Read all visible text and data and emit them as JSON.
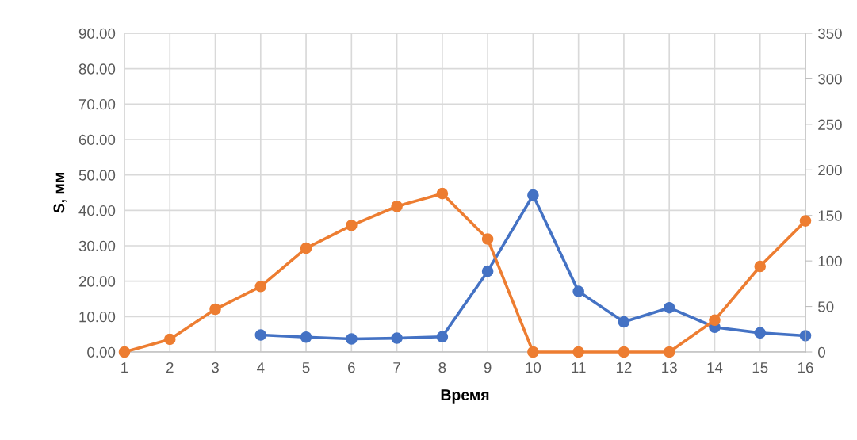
{
  "chart_data": {
    "type": "line",
    "xlabel": "Время",
    "ylabel": "S, мм",
    "categories": [
      "1",
      "2",
      "3",
      "4",
      "5",
      "6",
      "7",
      "8",
      "9",
      "10",
      "11",
      "12",
      "13",
      "14",
      "15",
      "16"
    ],
    "series": [
      {
        "color": "#4472c4",
        "values": [
          null,
          null,
          null,
          4.8,
          4.2,
          3.7,
          3.9,
          4.3,
          22.8,
          44.3,
          17.1,
          8.5,
          12.5,
          7.0,
          5.4,
          4.6
        ]
      },
      {
        "color": "#ed7d31",
        "axis": "y2",
        "values": [
          0,
          14,
          47,
          72,
          114,
          139,
          160,
          174,
          124,
          0,
          0,
          0,
          0,
          35,
          94,
          144
        ]
      }
    ],
    "ylim": [
      0,
      90
    ],
    "yticks": [
      {
        "value": 0,
        "label": "0.00"
      },
      {
        "value": 10,
        "label": "10.00"
      },
      {
        "value": 20,
        "label": "20.00"
      },
      {
        "value": 30,
        "label": "30.00"
      },
      {
        "value": 40,
        "label": "40.00"
      },
      {
        "value": 50,
        "label": "50.00"
      },
      {
        "value": 60,
        "label": "60.00"
      },
      {
        "value": 70,
        "label": "70.00"
      },
      {
        "value": 80,
        "label": "80.00"
      },
      {
        "value": 90,
        "label": "90.00"
      }
    ],
    "y2lim": [
      0,
      350
    ],
    "y2ticks": [
      0,
      50,
      100,
      150,
      200,
      250,
      300,
      350
    ],
    "grid": true,
    "marker": "circle",
    "line_style": "solid"
  }
}
